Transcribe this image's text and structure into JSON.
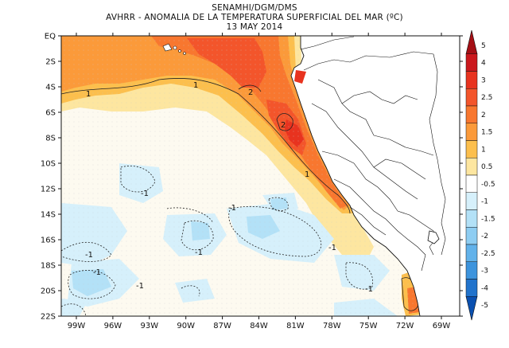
{
  "titles": {
    "agency": "SENAMHI/DGM/DMS",
    "product": "AVHRR - ANOMALIA DE LA TEMPERATURA SUPERFICIAL DEL MAR (ºC)",
    "date": "13 MAY 2014"
  },
  "y_ticks": [
    "EQ",
    "2S",
    "4S",
    "6S",
    "8S",
    "10S",
    "12S",
    "14S",
    "16S",
    "18S",
    "20S",
    "22S"
  ],
  "x_ticks": [
    "99W",
    "96W",
    "93W",
    "90W",
    "87W",
    "84W",
    "81W",
    "78W",
    "75W",
    "72W",
    "69W"
  ],
  "contour_labels": [
    "1",
    "1",
    "2",
    "2",
    "1",
    "-1",
    "-1",
    "-1",
    "-1",
    "-1",
    "-1",
    "-1",
    "-1"
  ],
  "colorbar": {
    "labels": [
      "5",
      "4",
      "3",
      "2.5",
      "2",
      "1.5",
      "1",
      "0.5",
      "-0.5",
      "-1",
      "-1.5",
      "-2",
      "-2.5",
      "-3",
      "-4",
      "-5"
    ],
    "colors": [
      "#a50f15",
      "#cb181d",
      "#e8331f",
      "#f3552b",
      "#f8772f",
      "#fb9a3a",
      "#fcbf4d",
      "#fde6a0",
      "#ffffff",
      "#d6f0fb",
      "#b3e1f7",
      "#8ecdf2",
      "#62b2ea",
      "#3d94dd",
      "#2173cc",
      "#0a50b0"
    ]
  },
  "colors": {
    "land": "#ffffff",
    "neutral_sea": "#fdfaf0",
    "warm_1": "#fde6a0",
    "warm_2": "#fcbf4d",
    "warm_3": "#f8772f",
    "warm_4": "#e8331f",
    "cool_1": "#d6f0fb",
    "cool_2": "#b3e1f7"
  }
}
